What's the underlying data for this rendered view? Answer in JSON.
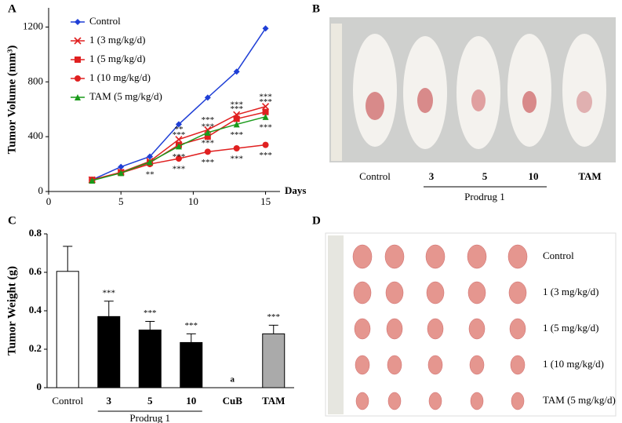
{
  "panels": [
    "A",
    "B",
    "C",
    "D"
  ],
  "chart_data": [
    {
      "type": "line",
      "xlabel": "Days",
      "ylabel": "Tumor Volume (mm³)",
      "xlim": [
        0,
        16
      ],
      "xticks": [
        0,
        5,
        10,
        15
      ],
      "ylim": [
        0,
        1340
      ],
      "yticks": [
        0,
        400,
        800,
        1200
      ],
      "x": [
        3,
        5,
        7,
        9,
        11,
        13,
        15
      ],
      "series": [
        {
          "name": "Control",
          "color": "#1f3fd6",
          "marker": "diamond",
          "values": [
            85,
            180,
            255,
            490,
            685,
            875,
            1190
          ]
        },
        {
          "name": "1 (3 mg/kg/d)",
          "color": "#e02020",
          "marker": "x",
          "values": [
            85,
            140,
            220,
            380,
            450,
            560,
            620
          ],
          "significance": [
            null,
            null,
            null,
            "**",
            "***",
            "***",
            "***"
          ]
        },
        {
          "name": "1 (5 mg/kg/d)",
          "color": "#e02020",
          "marker": "square",
          "values": [
            85,
            140,
            210,
            340,
            400,
            530,
            580
          ],
          "significance": [
            null,
            null,
            null,
            "***",
            "***",
            "***",
            "***"
          ]
        },
        {
          "name": "1 (10 mg/kg/d)",
          "color": "#e02020",
          "marker": "circle",
          "values": [
            85,
            135,
            200,
            240,
            290,
            315,
            340
          ],
          "significance": [
            null,
            null,
            "**",
            "***",
            "***",
            "***",
            "***"
          ]
        },
        {
          "name": "TAM (5 mg/kg/d)",
          "color": "#1a9a1a",
          "marker": "triangle",
          "values": [
            80,
            135,
            215,
            330,
            430,
            490,
            545
          ],
          "significance": [
            null,
            null,
            null,
            "***",
            "***",
            "***",
            "***"
          ]
        }
      ]
    },
    {
      "type": "bar",
      "ylabel": "Tumor Weight (g)",
      "ylim": [
        0,
        0.8
      ],
      "yticks": [
        0,
        0.2,
        0.4,
        0.6,
        0.8
      ],
      "categories": [
        "Control",
        "3",
        "5",
        "10",
        "CuB",
        "TAM"
      ],
      "values": [
        0.605,
        0.37,
        0.3,
        0.235,
        0,
        0.28
      ],
      "errors": [
        0.13,
        0.08,
        0.045,
        0.045,
        null,
        0.045
      ],
      "colors": [
        "#ffffff",
        "#000000",
        "#000000",
        "#000000",
        "#000000",
        "#aaaaaa"
      ],
      "labels": [
        null,
        "***",
        "***",
        "***",
        "a",
        "***"
      ],
      "group_label": "Prodrug 1"
    }
  ],
  "photo_b": {
    "labels": [
      "Control",
      "3",
      "5",
      "10",
      "TAM"
    ],
    "group_label": "Prodrug 1"
  },
  "photo_d": {
    "rows": [
      "Control",
      "1 (3 mg/kg/d)",
      "1 (5 mg/kg/d)",
      "1 (10 mg/kg/d)",
      "TAM (5 mg/kg/d)"
    ]
  }
}
